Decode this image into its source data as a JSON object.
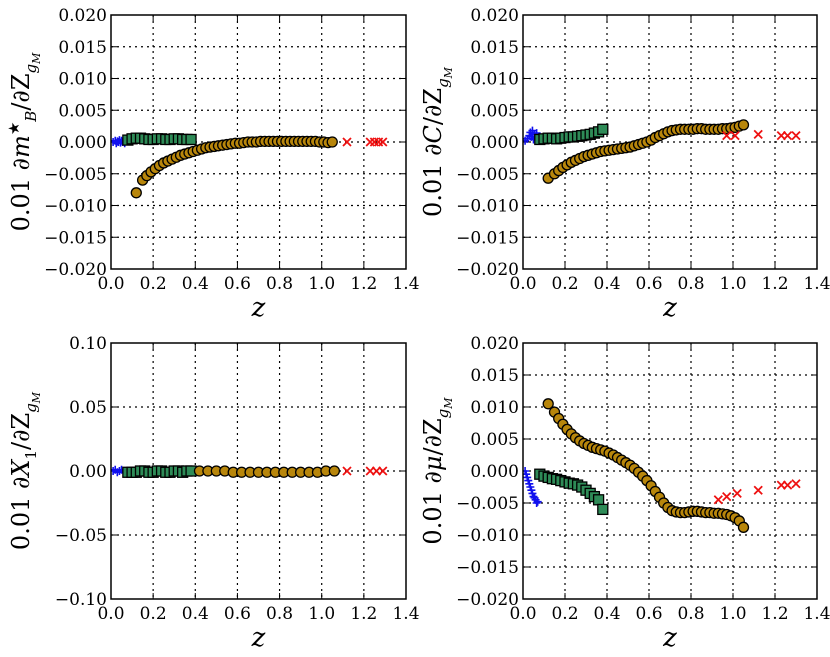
{
  "figure": {
    "xlabel": "z"
  },
  "colors": {
    "blue": "#1010ee",
    "green": "#2e8b57",
    "green_small": "#3aa070",
    "gold": "#b8860b",
    "gold_small": "#d4a017",
    "red": "#ee1111"
  },
  "chart_data": [
    {
      "type": "scatter",
      "ylabel": "0.01 ∂m*_B/∂Z_gM",
      "xlabel": "z",
      "xlim": [
        0.0,
        1.4
      ],
      "ylim": [
        -0.02,
        0.02
      ],
      "xticks": [
        "0.0",
        "0.2",
        "0.4",
        "0.6",
        "0.8",
        "1.0",
        "1.2",
        "1.4"
      ],
      "yticks": [
        "0.020",
        "0.015",
        "0.010",
        "0.005",
        "0.000",
        "−0.005",
        "−0.010",
        "−0.015",
        "−0.020"
      ],
      "grid": true,
      "series": [
        {
          "marker": "plus",
          "color": "blue",
          "x": [
            0.01,
            0.02,
            0.025,
            0.03,
            0.035,
            0.04,
            0.045,
            0.05,
            0.055,
            0.06,
            0.065,
            0.07
          ],
          "y": [
            0.0,
            0.0002,
            -0.0002,
            0.0001,
            0.0,
            0.0003,
            -0.0001,
            0.0002,
            0.0,
            0.0001,
            -0.0002,
            0.0002
          ]
        },
        {
          "marker": "square",
          "color": "green",
          "x": [
            0.08,
            0.1,
            0.12,
            0.14,
            0.16,
            0.18,
            0.2,
            0.22,
            0.24,
            0.26,
            0.28,
            0.3,
            0.32,
            0.34,
            0.36,
            0.38
          ],
          "y": [
            0.0003,
            0.0005,
            0.0006,
            0.0006,
            0.0005,
            0.0004,
            0.0004,
            0.0005,
            0.0005,
            0.0004,
            0.0004,
            0.0005,
            0.0005,
            0.0004,
            0.0004,
            0.0004
          ]
        },
        {
          "marker": "circle",
          "color": "gold",
          "x": [
            0.12,
            0.15,
            0.17,
            0.19,
            0.21,
            0.23,
            0.25,
            0.27,
            0.29,
            0.31,
            0.33,
            0.35,
            0.37,
            0.39,
            0.41,
            0.43,
            0.45,
            0.47,
            0.49,
            0.51,
            0.53,
            0.55,
            0.57,
            0.59,
            0.61,
            0.63,
            0.65,
            0.67,
            0.69,
            0.71,
            0.73,
            0.75,
            0.77,
            0.79,
            0.81,
            0.83,
            0.85,
            0.87,
            0.89,
            0.91,
            0.93,
            0.95,
            0.97,
            0.99,
            1.01,
            1.03,
            1.05
          ],
          "y": [
            -0.008,
            -0.006,
            -0.0053,
            -0.0047,
            -0.0042,
            -0.0037,
            -0.0033,
            -0.003,
            -0.0027,
            -0.0024,
            -0.0021,
            -0.0019,
            -0.0017,
            -0.0015,
            -0.0013,
            -0.0011,
            -0.0009,
            -0.0008,
            -0.0007,
            -0.0006,
            -0.0005,
            -0.0004,
            -0.0003,
            -0.0002,
            -0.0002,
            -0.0001,
            0.0,
            0.0,
            0.0,
            0.0001,
            0.0001,
            0.0001,
            0.0001,
            0.0001,
            0.0001,
            0.0001,
            0.0001,
            0.0001,
            0.0001,
            0.0001,
            0.0001,
            0.0001,
            0.0001,
            0.0,
            0.0,
            -0.0001,
            0.0
          ]
        },
        {
          "marker": "cross",
          "color": "red",
          "x": [
            1.12,
            1.23,
            1.25,
            1.27,
            1.29
          ],
          "y": [
            0.0,
            0.0,
            0.0,
            0.0,
            0.0
          ]
        }
      ]
    },
    {
      "type": "scatter",
      "ylabel": "0.01 ∂C/∂Z_gM",
      "xlabel": "z",
      "xlim": [
        0.0,
        1.4
      ],
      "ylim": [
        -0.02,
        0.02
      ],
      "xticks": [
        "0.0",
        "0.2",
        "0.4",
        "0.6",
        "0.8",
        "1.0",
        "1.2",
        "1.4"
      ],
      "yticks": [
        "0.020",
        "0.015",
        "0.010",
        "0.005",
        "0.000",
        "−0.005",
        "−0.010",
        "−0.015",
        "−0.020"
      ],
      "grid": true,
      "series": [
        {
          "marker": "plus",
          "color": "blue",
          "x": [
            0.01,
            0.02,
            0.03,
            0.035,
            0.04,
            0.045,
            0.05,
            0.055,
            0.06,
            0.065,
            0.07
          ],
          "y": [
            0.0002,
            0.0005,
            0.001,
            0.0015,
            0.0008,
            0.0018,
            0.0004,
            0.0012,
            0.0006,
            0.0014,
            0.0003
          ]
        },
        {
          "marker": "square",
          "color": "green",
          "x": [
            0.08,
            0.1,
            0.12,
            0.14,
            0.16,
            0.18,
            0.2,
            0.22,
            0.24,
            0.26,
            0.28,
            0.3,
            0.32,
            0.34,
            0.36,
            0.38
          ],
          "y": [
            0.0004,
            0.0005,
            0.0006,
            0.0006,
            0.0005,
            0.0006,
            0.0007,
            0.0008,
            0.0008,
            0.0009,
            0.001,
            0.0011,
            0.0012,
            0.0014,
            0.0016,
            0.002
          ]
        },
        {
          "marker": "circle",
          "color": "gold",
          "x": [
            0.12,
            0.15,
            0.17,
            0.19,
            0.21,
            0.23,
            0.25,
            0.27,
            0.29,
            0.31,
            0.33,
            0.35,
            0.37,
            0.39,
            0.41,
            0.43,
            0.45,
            0.47,
            0.49,
            0.51,
            0.53,
            0.55,
            0.57,
            0.59,
            0.61,
            0.63,
            0.65,
            0.67,
            0.69,
            0.71,
            0.73,
            0.75,
            0.77,
            0.79,
            0.81,
            0.83,
            0.85,
            0.87,
            0.89,
            0.91,
            0.93,
            0.95,
            0.97,
            0.99,
            1.01,
            1.03,
            1.05
          ],
          "y": [
            -0.0057,
            -0.005,
            -0.0045,
            -0.004,
            -0.0036,
            -0.0032,
            -0.0029,
            -0.0026,
            -0.0023,
            -0.0021,
            -0.0019,
            -0.0017,
            -0.0015,
            -0.0014,
            -0.0013,
            -0.0012,
            -0.0011,
            -0.001,
            -0.0009,
            -0.0008,
            -0.0006,
            -0.0004,
            -0.0002,
            0.0,
            0.0003,
            0.0007,
            0.001,
            0.0013,
            0.0016,
            0.0018,
            0.0019,
            0.002,
            0.002,
            0.002,
            0.002,
            0.0021,
            0.0021,
            0.002,
            0.002,
            0.002,
            0.002,
            0.0021,
            0.0021,
            0.0022,
            0.0023,
            0.0025,
            0.0027
          ]
        },
        {
          "marker": "cross",
          "color": "red",
          "x": [
            0.97,
            1.01,
            1.12,
            1.23,
            1.26,
            1.3
          ],
          "y": [
            0.001,
            0.001,
            0.0012,
            0.001,
            0.001,
            0.001
          ]
        }
      ]
    },
    {
      "type": "scatter",
      "ylabel": "0.01 ∂X_1/∂Z_gM",
      "xlabel": "z",
      "xlim": [
        0.0,
        1.4
      ],
      "ylim": [
        -0.1,
        0.1
      ],
      "xticks": [
        "0.0",
        "0.2",
        "0.4",
        "0.6",
        "0.8",
        "1.0",
        "1.2",
        "1.4"
      ],
      "yticks": [
        "0.10",
        "0.05",
        "0.00",
        "−0.05",
        "−0.10"
      ],
      "grid": true,
      "series": [
        {
          "marker": "plus",
          "color": "blue",
          "x": [
            0.01,
            0.02,
            0.03,
            0.04,
            0.05,
            0.06,
            0.07
          ],
          "y": [
            0.0,
            0.001,
            -0.001,
            0.0,
            0.001,
            0.0,
            -0.001
          ]
        },
        {
          "marker": "square",
          "color": "green",
          "x": [
            0.08,
            0.1,
            0.12,
            0.14,
            0.16,
            0.18,
            0.2,
            0.22,
            0.24,
            0.26,
            0.28,
            0.3,
            0.32,
            0.34,
            0.36,
            0.38
          ],
          "y": [
            -0.001,
            -0.001,
            -0.001,
            0.0,
            0.0,
            -0.001,
            -0.001,
            0.0,
            0.0,
            -0.001,
            -0.001,
            0.0,
            0.0,
            -0.001,
            0.0,
            0.0
          ]
        },
        {
          "marker": "circle",
          "color": "gold",
          "x": [
            0.42,
            0.46,
            0.5,
            0.54,
            0.58,
            0.62,
            0.66,
            0.7,
            0.74,
            0.78,
            0.82,
            0.86,
            0.9,
            0.94,
            0.98,
            1.02,
            1.06
          ],
          "y": [
            0.0,
            0.0,
            0.0,
            0.0,
            -0.001,
            -0.001,
            -0.001,
            -0.001,
            -0.001,
            -0.001,
            -0.001,
            -0.001,
            -0.001,
            -0.001,
            -0.001,
            0.0,
            0.0
          ]
        },
        {
          "marker": "cross",
          "color": "red",
          "x": [
            1.12,
            1.23,
            1.26,
            1.29
          ],
          "y": [
            0.0,
            0.0,
            0.0,
            0.0
          ]
        }
      ]
    },
    {
      "type": "scatter",
      "ylabel": "0.01 ∂μ/∂Z_gM",
      "xlabel": "z",
      "xlim": [
        0.0,
        1.4
      ],
      "ylim": [
        -0.02,
        0.02
      ],
      "xticks": [
        "0.0",
        "0.2",
        "0.4",
        "0.6",
        "0.8",
        "1.0",
        "1.2",
        "1.4"
      ],
      "yticks": [
        "0.020",
        "0.015",
        "0.010",
        "0.005",
        "0.000",
        "−0.005",
        "−0.010",
        "−0.015",
        "−0.020"
      ],
      "grid": true,
      "series": [
        {
          "marker": "plus",
          "color": "blue",
          "x": [
            0.01,
            0.015,
            0.02,
            0.025,
            0.03,
            0.035,
            0.04,
            0.045,
            0.05,
            0.055,
            0.06,
            0.065,
            0.07
          ],
          "y": [
            0.0,
            -0.0005,
            -0.001,
            -0.0015,
            -0.002,
            -0.0025,
            -0.003,
            -0.0035,
            -0.004,
            -0.0042,
            -0.0045,
            -0.005,
            -0.0048
          ]
        },
        {
          "marker": "square",
          "color": "green",
          "x": [
            0.08,
            0.1,
            0.12,
            0.14,
            0.16,
            0.18,
            0.2,
            0.22,
            0.24,
            0.26,
            0.28,
            0.3,
            0.32,
            0.34,
            0.36,
            0.38
          ],
          "y": [
            -0.0005,
            -0.0008,
            -0.001,
            -0.0012,
            -0.0013,
            -0.0015,
            -0.0017,
            -0.0019,
            -0.002,
            -0.0022,
            -0.0025,
            -0.003,
            -0.0035,
            -0.004,
            -0.0045,
            -0.006
          ]
        },
        {
          "marker": "circle",
          "color": "gold",
          "x": [
            0.12,
            0.15,
            0.17,
            0.19,
            0.21,
            0.23,
            0.25,
            0.27,
            0.29,
            0.31,
            0.33,
            0.35,
            0.37,
            0.39,
            0.41,
            0.43,
            0.45,
            0.47,
            0.49,
            0.51,
            0.53,
            0.55,
            0.57,
            0.59,
            0.61,
            0.63,
            0.65,
            0.67,
            0.69,
            0.71,
            0.73,
            0.75,
            0.77,
            0.79,
            0.81,
            0.83,
            0.85,
            0.87,
            0.89,
            0.91,
            0.93,
            0.95,
            0.97,
            0.99,
            1.01,
            1.03,
            1.05
          ],
          "y": [
            0.0105,
            0.0092,
            0.0082,
            0.0073,
            0.0065,
            0.0058,
            0.0052,
            0.0047,
            0.0043,
            0.004,
            0.0037,
            0.0035,
            0.0033,
            0.0031,
            0.0028,
            0.0025,
            0.0021,
            0.0017,
            0.0013,
            0.0009,
            0.0004,
            -0.0002,
            -0.0008,
            -0.0015,
            -0.0023,
            -0.0032,
            -0.0041,
            -0.005,
            -0.0057,
            -0.0062,
            -0.0064,
            -0.0065,
            -0.0065,
            -0.0064,
            -0.0063,
            -0.0063,
            -0.0064,
            -0.0065,
            -0.0065,
            -0.0066,
            -0.0066,
            -0.0067,
            -0.0068,
            -0.007,
            -0.0073,
            -0.0078,
            -0.0088
          ]
        },
        {
          "marker": "cross",
          "color": "red",
          "x": [
            0.93,
            0.97,
            1.02,
            1.12,
            1.23,
            1.26,
            1.3
          ],
          "y": [
            -0.0045,
            -0.004,
            -0.0035,
            -0.003,
            -0.0022,
            -0.0022,
            -0.002
          ]
        }
      ]
    }
  ]
}
